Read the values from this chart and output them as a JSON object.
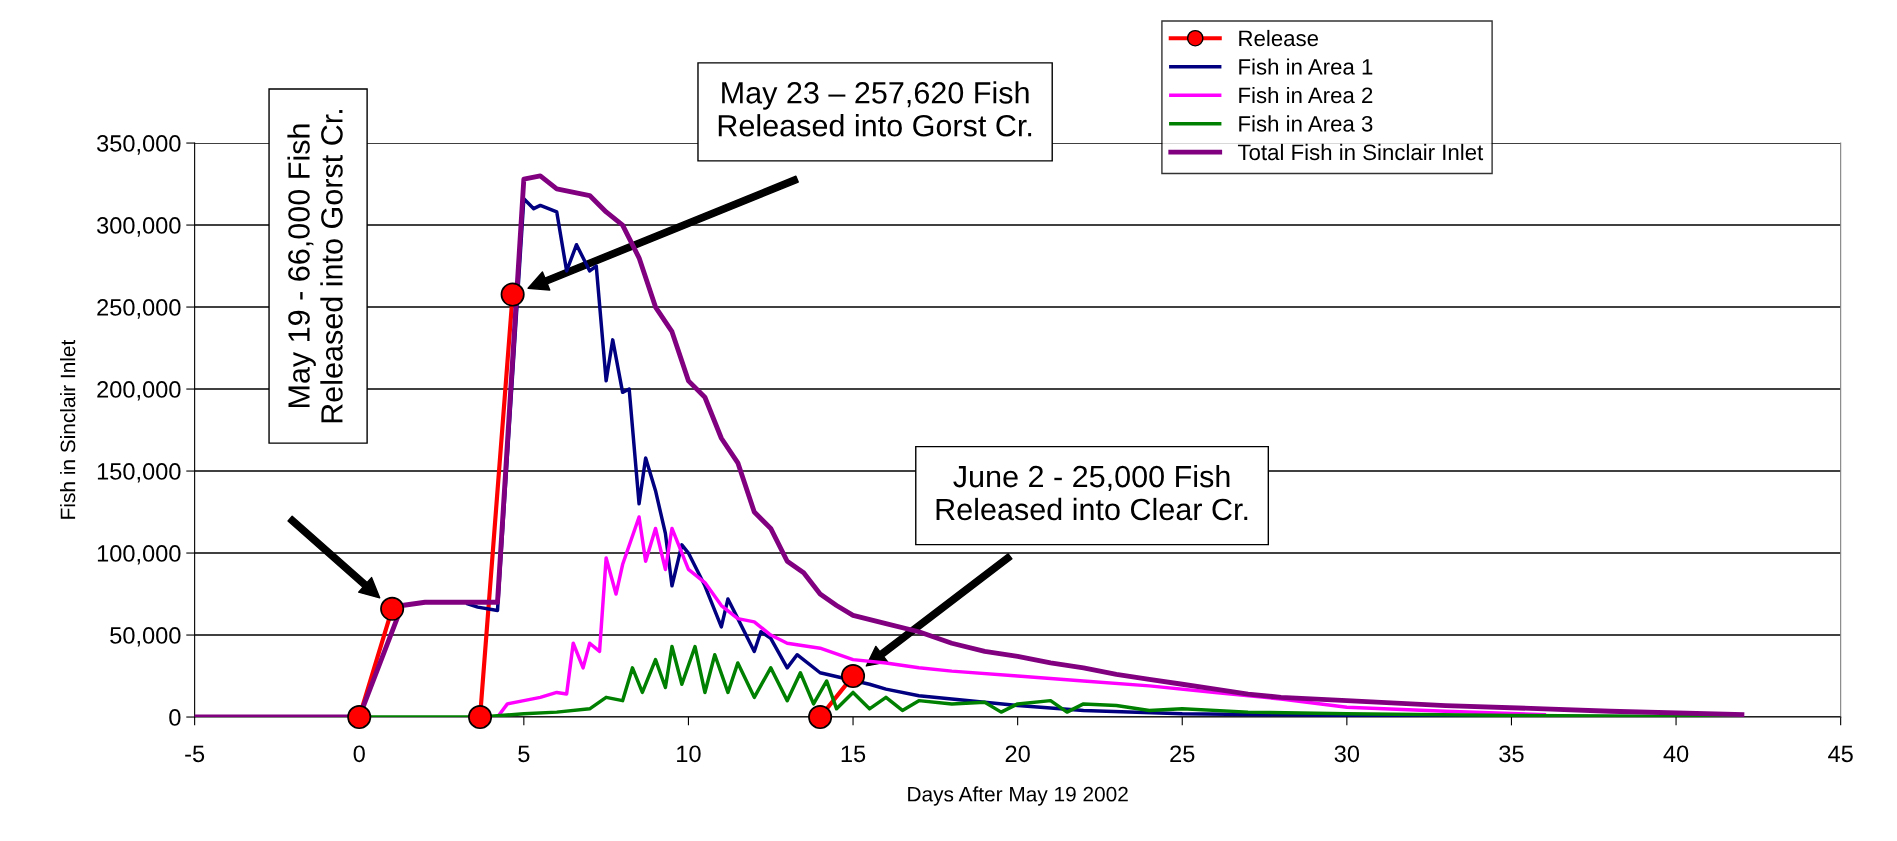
{
  "chart_data": {
    "type": "line",
    "xlabel": "Days After May 19 2002",
    "ylabel": "Fish in Sinclair Inlet",
    "xlim": [
      -5,
      45
    ],
    "xticks": [
      -5,
      0,
      5,
      10,
      15,
      20,
      25,
      30,
      35,
      40,
      45
    ],
    "ylim": [
      0,
      350000
    ],
    "yticks": [
      0,
      {
        "value": 50000,
        "label": "50,000"
      },
      {
        "value": 100000,
        "label": "100,000"
      },
      {
        "value": 150000,
        "label": "150,000"
      },
      {
        "value": 200000,
        "label": "200,000"
      },
      {
        "value": 250000,
        "label": "250,000"
      },
      {
        "value": 300000,
        "label": "300,000"
      },
      {
        "value": 350000,
        "label": "350,000"
      }
    ],
    "grid": "y",
    "legend": "top right",
    "series": [
      {
        "name": "Release",
        "color": "#ff0000",
        "marker": "circle",
        "x": [
          0,
          1,
          2,
          3.67,
          4.66,
          10,
          14,
          15
        ],
        "values": [
          0,
          66000,
          null,
          0,
          257620,
          null,
          0,
          25000
        ]
      },
      {
        "name": "Fish in Area 1",
        "color": "#000080",
        "x": [
          3.3,
          3.6,
          4.2,
          5,
          5.3,
          5.5,
          6,
          6.3,
          6.6,
          7,
          7.2,
          7.5,
          7.7,
          8,
          8.2,
          8.5,
          8.7,
          9,
          9.3,
          9.5,
          9.8,
          10,
          10.5,
          11,
          11.2,
          11.5,
          12,
          12.2,
          12.5,
          13,
          13.3,
          14,
          15.5,
          16,
          17,
          18,
          20,
          22,
          25,
          30,
          35,
          42
        ],
        "values": [
          69000,
          67000,
          65000,
          316000,
          310000,
          312000,
          308000,
          272000,
          288000,
          272000,
          275000,
          205000,
          230000,
          198000,
          200000,
          130000,
          158000,
          138000,
          112000,
          80000,
          105000,
          100000,
          80000,
          55000,
          72000,
          60000,
          40000,
          52000,
          48000,
          30000,
          38000,
          27000,
          20000,
          17000,
          13000,
          11000,
          7000,
          4000,
          2000,
          1000,
          500,
          0
        ]
      },
      {
        "name": "Fish in Area 2",
        "color": "#ff00ff",
        "x": [
          3.7,
          4.2,
          4.5,
          5,
          5.5,
          6,
          6.3,
          6.5,
          6.8,
          7,
          7.3,
          7.5,
          7.8,
          8,
          8.5,
          8.7,
          9,
          9.3,
          9.5,
          10,
          10.5,
          11,
          11.5,
          12,
          12.5,
          13,
          14,
          15,
          16,
          17,
          18,
          20,
          22,
          24,
          26,
          28,
          30,
          33,
          36
        ],
        "values": [
          0,
          0,
          8000,
          10000,
          12000,
          15000,
          14000,
          45000,
          30000,
          45000,
          40000,
          97000,
          75000,
          93000,
          122000,
          95000,
          115000,
          90000,
          115000,
          90000,
          82000,
          68000,
          60000,
          58000,
          50000,
          45000,
          42000,
          35000,
          33000,
          30000,
          28000,
          25000,
          22000,
          19000,
          15000,
          11000,
          6000,
          3500,
          1500
        ]
      },
      {
        "name": "Fish in Area 3",
        "color": "#008000",
        "x": [
          0,
          3.7,
          5,
          6,
          7,
          7.5,
          8,
          8.3,
          8.6,
          9,
          9.3,
          9.5,
          9.8,
          10.2,
          10.5,
          10.8,
          11.2,
          11.5,
          12,
          12.5,
          13,
          13.4,
          13.8,
          14.2,
          14.5,
          15,
          15.5,
          16,
          16.5,
          17,
          18,
          19,
          19.5,
          20,
          21,
          21.5,
          22,
          23,
          24,
          25,
          27,
          30,
          35,
          42
        ],
        "values": [
          0,
          0,
          2000,
          3000,
          5000,
          12000,
          10000,
          30000,
          15000,
          35000,
          18000,
          43000,
          20000,
          43000,
          15000,
          38000,
          15000,
          33000,
          12000,
          30000,
          10000,
          27000,
          8000,
          22000,
          5000,
          15000,
          5000,
          12000,
          4000,
          10000,
          8000,
          9000,
          3000,
          8000,
          10000,
          3000,
          8000,
          7000,
          4000,
          5000,
          3000,
          2000,
          1000,
          0
        ]
      },
      {
        "name": "Total Fish in Sinclair Inlet",
        "color": "#800080",
        "x": [
          -5,
          0,
          1.3,
          2,
          3,
          4.2,
          5,
          5.5,
          6,
          7,
          7.5,
          8,
          8.5,
          9,
          9.5,
          10,
          10.5,
          11,
          11.5,
          12,
          12.5,
          13,
          13.5,
          14,
          14.5,
          15,
          16,
          17,
          18,
          19,
          20,
          21,
          22,
          23,
          24,
          25,
          26,
          27,
          28,
          30,
          33,
          36,
          38,
          42
        ],
        "values": [
          0,
          0,
          68000,
          70000,
          70000,
          70000,
          328000,
          330000,
          322000,
          318000,
          308000,
          300000,
          280000,
          250000,
          235000,
          205000,
          195000,
          170000,
          155000,
          125000,
          115000,
          95000,
          88000,
          75000,
          68000,
          62000,
          57000,
          52000,
          45000,
          40000,
          37000,
          33000,
          30000,
          26000,
          23000,
          20000,
          17000,
          14000,
          12000,
          10000,
          7000,
          5000,
          3500,
          1500
        ]
      }
    ],
    "annotations": [
      "May 19 - 66,000 Fish\nReleased into Gorst Cr.",
      "May 23 – 257,620 Fish\nReleased into Gorst Cr.",
      "June 2 - 25,000 Fish\nReleased into Clear Cr."
    ]
  }
}
